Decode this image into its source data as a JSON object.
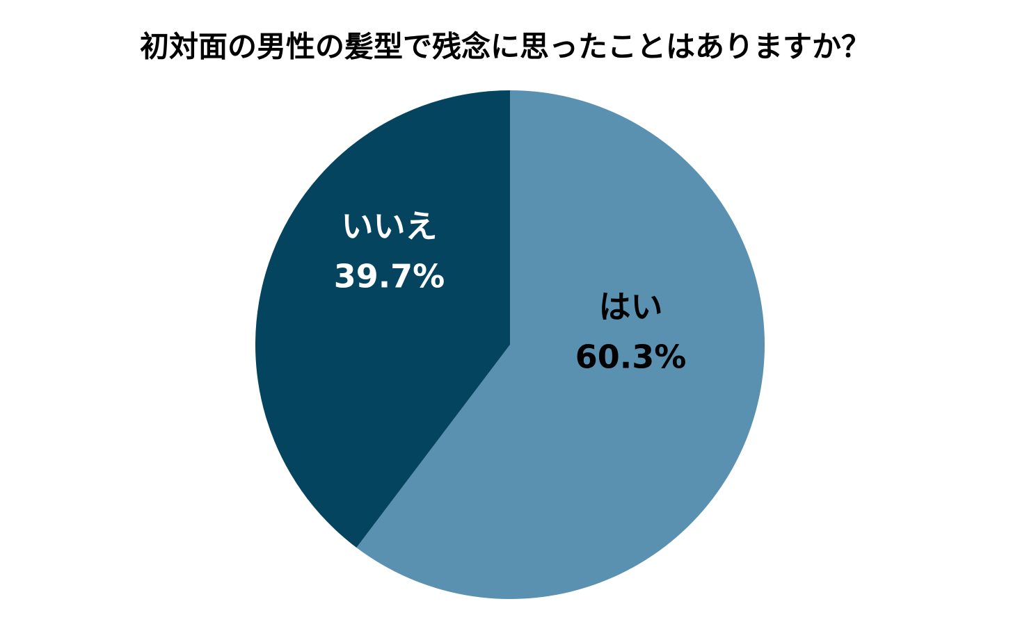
{
  "chart_data": {
    "type": "pie",
    "title": "初対面の男性の髪型で残念に思ったことはありますか？",
    "categories": [
      "はい",
      "いいえ"
    ],
    "values": [
      60.3,
      39.7
    ],
    "value_labels": [
      "60.3%",
      "39.7%"
    ],
    "colors": [
      "#5b91b0",
      "#05445f"
    ],
    "label_colors": [
      "#000000",
      "#ffffff"
    ]
  }
}
